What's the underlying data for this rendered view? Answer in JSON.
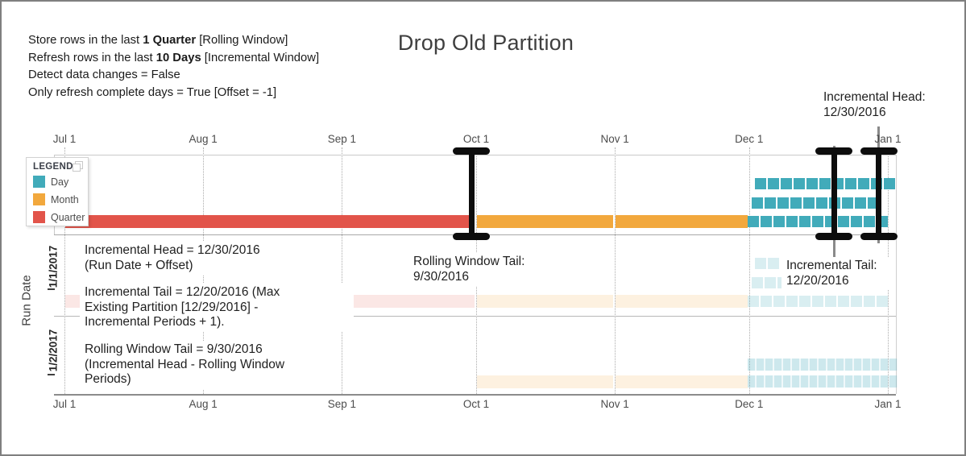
{
  "title": "Drop Old Partition",
  "config": {
    "lines": [
      [
        {
          "t": "Store rows in the last ",
          "b": false
        },
        {
          "t": "1 Quarter",
          "b": true
        },
        {
          "t": " [Rolling Window]",
          "b": false
        }
      ],
      [
        {
          "t": "Refresh rows in the last ",
          "b": false
        },
        {
          "t": "10 Days",
          "b": true
        },
        {
          "t": " [Incremental Window]",
          "b": false
        }
      ],
      [
        {
          "t": "Detect data changes = False",
          "b": false
        }
      ],
      [
        {
          "t": "Only refresh complete days = True [Offset = -1]",
          "b": false
        }
      ]
    ]
  },
  "axis": {
    "run_date_label": "Run Date",
    "rows": [
      "1/1/2017",
      "1/2/2017"
    ]
  },
  "legend": {
    "title": "LEGEND",
    "copy_icon": "copy-pages-icon",
    "items": [
      {
        "label": "Day",
        "color": "#41abba"
      },
      {
        "label": "Month",
        "color": "#f2a83d"
      },
      {
        "label": "Quarter",
        "color": "#e2544a"
      }
    ]
  },
  "annotations": {
    "incremental_head_top": "Incremental Head:\n12/30/2016",
    "head_note": "Incremental Head = 12/30/2016\n(Run Date + Offset)",
    "tail_note": "Incremental Tail = 12/20/2016 (Max\nExisting Partition [12/29/2016] -\nIncremental Periods + 1).",
    "rolling_tail_label": "Rolling Window Tail:\n9/30/2016",
    "incremental_tail_label": "Incremental Tail:\n12/20/2016",
    "rolling_note": "Rolling Window Tail = 9/30/2016\n(Incremental Head - Rolling Window\nPeriods)"
  },
  "chart_data": {
    "type": "bar",
    "subtype": "partition-timeline",
    "title": "Drop Old Partition",
    "x_ticks": [
      "Jul 1",
      "Aug 1",
      "Sep 1",
      "Oct 1",
      "Nov 1",
      "Dec 1",
      "Jan 1"
    ],
    "x_tick_dates": [
      "7/1/2016",
      "8/1/2016",
      "9/1/2016",
      "10/1/2016",
      "11/1/2016",
      "12/1/2016",
      "1/1/2017"
    ],
    "x_range": [
      "7/1/2016",
      "1/1/2017"
    ],
    "ylabel": "Run Date",
    "grid": true,
    "legend_position": "top-left",
    "rows": [
      {
        "name": "existing-partitions",
        "faded": false,
        "bars": [
          {
            "type": "Quarter",
            "start": "7/1/2016",
            "end": "9/30/2016"
          },
          {
            "type": "Month",
            "start": "10/1/2016",
            "end": "10/31/2016"
          },
          {
            "type": "Month",
            "start": "11/1/2016",
            "end": "11/30/2016"
          }
        ],
        "days": {
          "start": "12/1/2016",
          "end": "12/29/2016"
        },
        "day_display_rows": [
          11,
          10,
          11
        ],
        "dense_days": false
      },
      {
        "name": "1/1/2017",
        "faded": true,
        "bars": [
          {
            "type": "Quarter",
            "start": "7/1/2016",
            "end": "9/30/2016"
          },
          {
            "type": "Month",
            "start": "10/1/2016",
            "end": "10/31/2016"
          },
          {
            "type": "Month",
            "start": "11/1/2016",
            "end": "11/30/2016"
          }
        ],
        "days": {
          "start": "12/1/2016",
          "end": "12/31/2016"
        },
        "day_display_rows": [
          2,
          3,
          11
        ],
        "dense_days": false
      },
      {
        "name": "1/2/2017",
        "faded": true,
        "bars": [
          {
            "type": "Month",
            "start": "10/1/2016",
            "end": "10/31/2016"
          },
          {
            "type": "Month",
            "start": "11/1/2016",
            "end": "11/30/2016"
          }
        ],
        "days": {
          "start": "12/1/2016",
          "end": "1/1/2017"
        },
        "day_display_rows": [
          17,
          17
        ],
        "dense_days": true
      }
    ],
    "markers": [
      {
        "label": "Rolling Window Tail",
        "date": "9/30/2016"
      },
      {
        "label": "Incremental Tail",
        "date": "12/20/2016"
      },
      {
        "label": "Incremental Head",
        "date": "12/30/2016"
      }
    ]
  }
}
